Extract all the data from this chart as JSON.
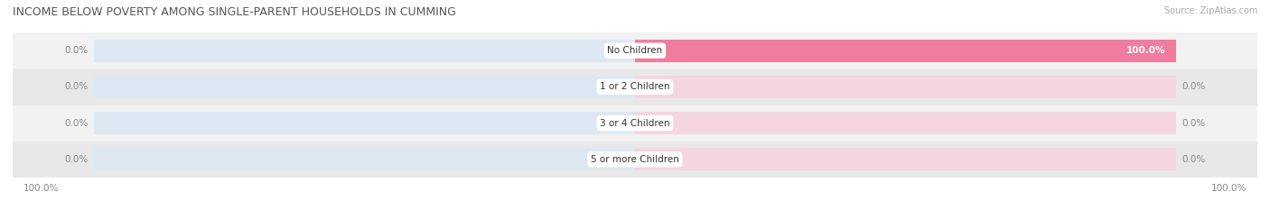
{
  "title": "INCOME BELOW POVERTY AMONG SINGLE-PARENT HOUSEHOLDS IN CUMMING",
  "source": "Source: ZipAtlas.com",
  "categories": [
    "No Children",
    "1 or 2 Children",
    "3 or 4 Children",
    "5 or more Children"
  ],
  "father_values": [
    0.0,
    0.0,
    0.0,
    0.0
  ],
  "mother_values": [
    100.0,
    0.0,
    0.0,
    0.0
  ],
  "father_color": "#aac4e0",
  "mother_color": "#f07ca0",
  "father_bg_color": "#dde8f2",
  "mother_bg_color": "#f5d5e0",
  "row_bg_light": "#f2f2f2",
  "row_bg_dark": "#e8e8e8",
  "label_color": "#888888",
  "white_label_color": "#ffffff",
  "title_color": "#555555",
  "source_color": "#aaaaaa",
  "bar_height": 0.62,
  "figsize": [
    14.06,
    2.33
  ],
  "dpi": 100
}
